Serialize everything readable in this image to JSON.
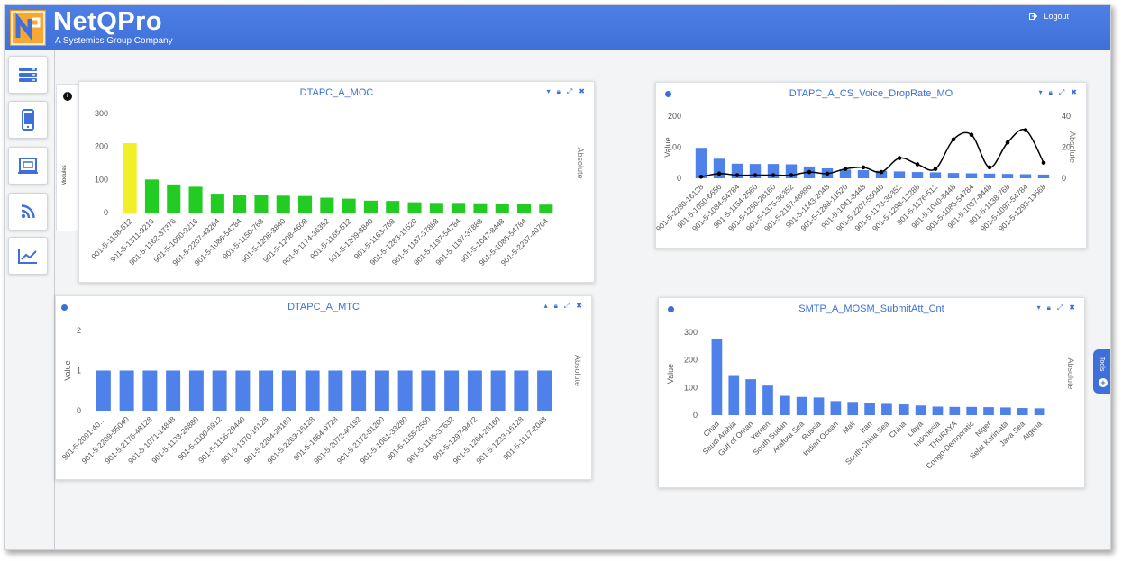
{
  "header": {
    "brand": "NetQPro",
    "tagline": "A Systemics Group Company",
    "logout_label": "Logout"
  },
  "sidebar": {
    "items": [
      {
        "name": "sidebar-item-servers",
        "icon": "server-icon"
      },
      {
        "name": "sidebar-item-mobile",
        "icon": "mobile-phone-icon"
      },
      {
        "name": "sidebar-item-devices",
        "icon": "device-screen-icon"
      },
      {
        "name": "sidebar-item-feed",
        "icon": "rss-feed-icon"
      },
      {
        "name": "sidebar-item-analytics",
        "icon": "line-chart-icon"
      }
    ],
    "modules_label": "Modules"
  },
  "tools": {
    "label": "Tools"
  },
  "colors": {
    "header": "#3f70d9",
    "accent": "#3b6fd8",
    "bar_blue": "#4e81ea",
    "bar_green": "#22cc22",
    "bar_yellow": "#f0f029",
    "line": "#000000"
  },
  "panels": [
    {
      "title": "DTAPC_A_MOC",
      "right_label": "Absolute",
      "left_label": "",
      "collapse_icon": "chevron-down-icon",
      "chart_data": {
        "type": "bar",
        "ylim": [
          0,
          300
        ],
        "yticks": [
          0,
          100,
          200,
          300
        ],
        "categories": [
          "901-5-1138-512",
          "901-5-1311-9216",
          "901-5-1162-37376",
          "901-5-1050-9216",
          "901-5-2207-43264",
          "901-5-1086-54784",
          "901-5-1150-768",
          "901-5-1208-3840",
          "901-5-1208-4608",
          "901-5-1174-36352",
          "901-5-1165-512",
          "901-5-1209-3840",
          "901-5-1163-768",
          "901-5-1283-11520",
          "901-5-1187-37888",
          "901-5-1197-54784",
          "901-5-1197-37888",
          "901-5-1047-8448",
          "901-5-1085-54784",
          "901-5-2237-40704"
        ],
        "values": [
          210,
          100,
          85,
          78,
          57,
          53,
          52,
          51,
          50,
          45,
          42,
          36,
          35,
          31,
          29,
          29,
          28,
          27,
          26,
          24
        ],
        "highlight_index": 0
      }
    },
    {
      "title": "DTAPC_A_CS_Voice_DropRate_MO",
      "right_label": "Absolute",
      "left_label": "Value",
      "collapse_icon": "chevron-down-icon",
      "chart_data": {
        "type": "bar+line",
        "ylim": [
          0,
          200
        ],
        "yticks": [
          0,
          100,
          200
        ],
        "y2lim": [
          0,
          40
        ],
        "y2ticks": [
          0,
          20,
          40
        ],
        "categories": [
          "901-5-2280-16128",
          "901-5-1050-6656",
          "901-5-1084-54784",
          "901-5-1154-2560",
          "901-5-1250-28160",
          "901-5-1375-36352",
          "901-5-2157-48896",
          "901-5-1143-2048",
          "901-5-1288-11520",
          "901-5-1041-8448",
          "901-5-2207-55040",
          "901-5-1173-36352",
          "901-5-1298-12288",
          "901-5-1176-512",
          "901-5-1040-8448",
          "901-5-1085-54784",
          "901-5-1037-8448",
          "901-5-1138-768",
          "901-5-1097-54784",
          "901-5-1293-13568"
        ],
        "series": [
          {
            "name": "",
            "type": "bar",
            "values": [
              98,
              63,
              47,
              46,
              46,
              45,
              38,
              32,
              28,
              26,
              24,
              22,
              20,
              19,
              17,
              16,
              15,
              14,
              13,
              12
            ]
          },
          {
            "name": "",
            "type": "line",
            "values": [
              1,
              3,
              2,
              2,
              2,
              2,
              4,
              3,
              6,
              7,
              4,
              13,
              9,
              6,
              25,
              28,
              7,
              23,
              31,
              10
            ]
          }
        ]
      }
    },
    {
      "title": "DTAPC_A_MTC",
      "right_label": "Absolute",
      "left_label": "Value",
      "collapse_icon": "chevron-up-icon",
      "chart_data": {
        "type": "bar",
        "ylim": [
          0,
          2
        ],
        "yticks": [
          0,
          1,
          2
        ],
        "categories": [
          "901-5-2091-40…",
          "901-5-2209-55040",
          "901-5-2176-48128",
          "901-5-1071-14848",
          "901-5-1133-26880",
          "901-5-1100-6912",
          "901-5-1116-29440",
          "901-5-1370-16128",
          "901-5-2204-28160",
          "901-5-2263-16128",
          "901-5-1064-9728",
          "901-5-2072-40192",
          "901-5-2172-51200",
          "901-5-1061-33280",
          "901-5-1155-2560",
          "901-5-1165-37632",
          "901-5-1297-9472",
          "901-5-1264-28160",
          "901-5-1233-16128",
          "901-5-1117-2048"
        ],
        "values": [
          1,
          1,
          1,
          1,
          1,
          1,
          1,
          1,
          1,
          1,
          1,
          1,
          1,
          1,
          1,
          1,
          1,
          1,
          1,
          1
        ]
      }
    },
    {
      "title": "SMTP_A_MOSM_SubmitAtt_Cnt",
      "right_label": "Absolute",
      "left_label": "Value",
      "collapse_icon": "chevron-down-icon",
      "chart_data": {
        "type": "bar",
        "ylim": [
          0,
          300
        ],
        "yticks": [
          0,
          100,
          200,
          300
        ],
        "categories": [
          "Chad",
          "Saudi Arabia",
          "Gulf of Oman",
          "Yemen",
          "South Sudan",
          "Arafura Sea",
          "Russia",
          "Indian Ocean",
          "Mali",
          "Iran",
          "South China Sea",
          "China",
          "Libya",
          "Indonesia",
          "THURAYA",
          "Congo-Democratic",
          "Niger",
          "Selat Karimata",
          "Java Sea",
          "Algeria"
        ],
        "values": [
          277,
          145,
          130,
          107,
          70,
          66,
          64,
          51,
          48,
          45,
          41,
          39,
          35,
          31,
          30,
          30,
          29,
          28,
          26,
          25
        ]
      }
    }
  ]
}
